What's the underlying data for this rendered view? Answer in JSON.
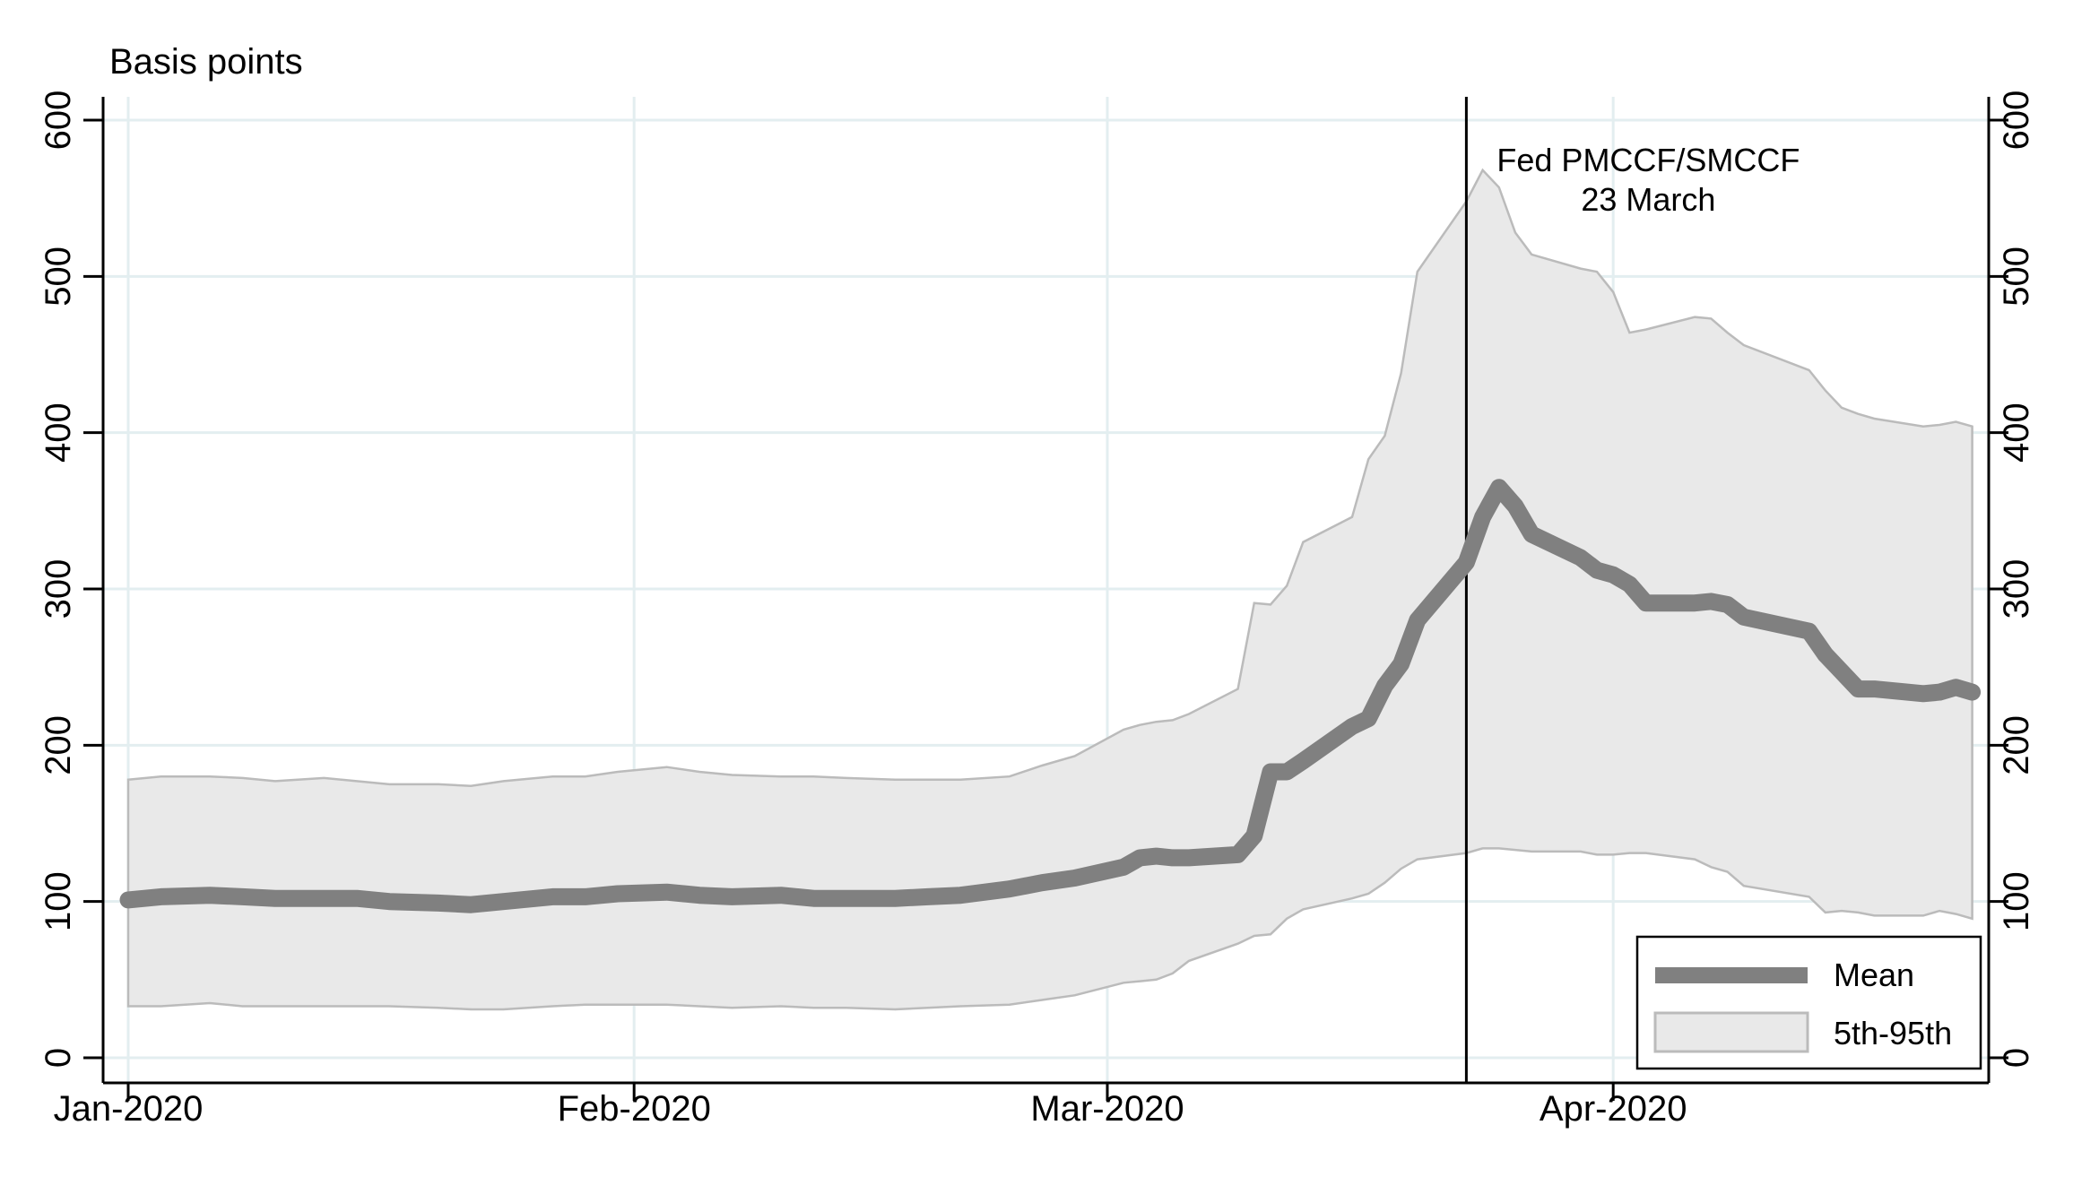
{
  "chart_data": {
    "type": "line",
    "ylabel": "Basis points",
    "x_ticks": [
      "Jan-2020",
      "Feb-2020",
      "Mar-2020",
      "Apr-2020"
    ],
    "y_ticks": [
      "0",
      "100",
      "200",
      "300",
      "400",
      "500",
      "600"
    ],
    "ylim": [
      0,
      600
    ],
    "grid": true,
    "right_axis": true,
    "annotation": {
      "line1": "Fed PMCCF/SMCCF",
      "line2": "23 March",
      "date": "2020-03-23"
    },
    "legend": {
      "position": "bottom-right",
      "mean_label": "Mean",
      "band_label": "5th-95th"
    },
    "colors": {
      "mean": "#808080",
      "band_fill": "#e9e9e9",
      "band_edge": "#bbbbbb",
      "grid": "#e3eef0",
      "event_line": "#000000"
    },
    "x": [
      "2020-01-01",
      "2020-01-03",
      "2020-01-06",
      "2020-01-08",
      "2020-01-10",
      "2020-01-13",
      "2020-01-15",
      "2020-01-17",
      "2020-01-20",
      "2020-01-22",
      "2020-01-24",
      "2020-01-27",
      "2020-01-29",
      "2020-01-31",
      "2020-02-03",
      "2020-02-05",
      "2020-02-07",
      "2020-02-10",
      "2020-02-12",
      "2020-02-14",
      "2020-02-17",
      "2020-02-19",
      "2020-02-21",
      "2020-02-24",
      "2020-02-26",
      "2020-02-28",
      "2020-03-02",
      "2020-03-03",
      "2020-03-04",
      "2020-03-05",
      "2020-03-06",
      "2020-03-09",
      "2020-03-10",
      "2020-03-11",
      "2020-03-12",
      "2020-03-13",
      "2020-03-16",
      "2020-03-17",
      "2020-03-18",
      "2020-03-19",
      "2020-03-20",
      "2020-03-23",
      "2020-03-24",
      "2020-03-25",
      "2020-03-26",
      "2020-03-27",
      "2020-03-30",
      "2020-03-31",
      "2020-04-01",
      "2020-04-02",
      "2020-04-03",
      "2020-04-06",
      "2020-04-07",
      "2020-04-08",
      "2020-04-09",
      "2020-04-13",
      "2020-04-14",
      "2020-04-15",
      "2020-04-16",
      "2020-04-17",
      "2020-04-20",
      "2020-04-21",
      "2020-04-22",
      "2020-04-23"
    ],
    "series": [
      {
        "name": "Mean",
        "values": [
          101,
          103,
          104,
          103,
          102,
          102,
          102,
          100,
          99,
          98,
          100,
          103,
          103,
          105,
          106,
          104,
          103,
          104,
          102,
          102,
          102,
          103,
          104,
          108,
          112,
          115,
          122,
          128,
          129,
          128,
          128,
          130,
          142,
          183,
          183,
          190,
          212,
          217,
          238,
          252,
          280,
          317,
          346,
          365,
          353,
          335,
          320,
          312,
          309,
          303,
          291,
          291,
          292,
          290,
          282,
          273,
          258,
          247,
          236,
          236,
          233,
          234,
          237,
          234
        ],
        "band": {
          "p5": [
            33,
            33,
            35,
            33,
            33,
            33,
            33,
            33,
            32,
            31,
            31,
            33,
            34,
            34,
            34,
            33,
            32,
            33,
            32,
            32,
            31,
            32,
            33,
            34,
            37,
            40,
            48,
            49,
            50,
            54,
            62,
            73,
            78,
            79,
            89,
            95,
            102,
            105,
            112,
            121,
            127,
            131,
            134,
            134,
            133,
            132,
            132,
            130,
            130,
            131,
            131,
            127,
            122,
            119,
            110,
            103,
            93,
            94,
            93,
            91,
            91,
            94,
            92,
            89
          ],
          "p95": [
            178,
            180,
            180,
            179,
            177,
            179,
            177,
            175,
            175,
            174,
            177,
            180,
            180,
            183,
            186,
            183,
            181,
            180,
            180,
            179,
            178,
            178,
            178,
            180,
            187,
            193,
            210,
            213,
            215,
            216,
            220,
            236,
            291,
            290,
            302,
            330,
            346,
            383,
            398,
            438,
            503,
            548,
            568,
            557,
            528,
            514,
            505,
            503,
            490,
            464,
            466,
            474,
            473,
            464,
            456,
            440,
            427,
            416,
            412,
            409,
            404,
            405,
            407,
            404
          ]
        }
      }
    ]
  }
}
